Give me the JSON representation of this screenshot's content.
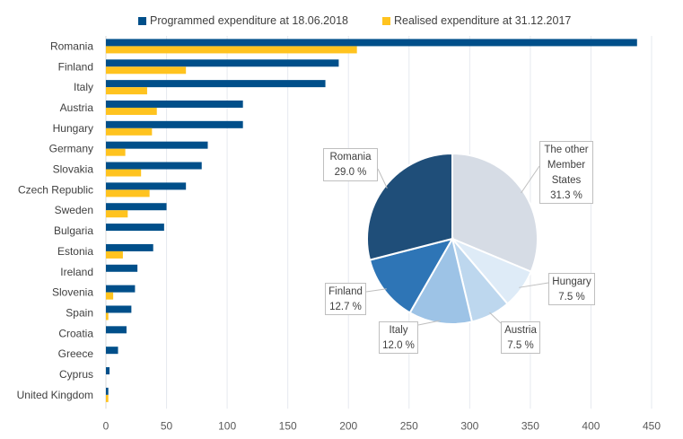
{
  "chart_data": [
    {
      "type": "bar",
      "orientation": "horizontal",
      "title": "",
      "xlabel": "",
      "ylabel": "",
      "xlim": [
        0,
        450
      ],
      "xticks": [
        0,
        50,
        100,
        150,
        200,
        250,
        300,
        350,
        400,
        450
      ],
      "grid": "vertical",
      "legend_position": "top",
      "categories": [
        "Romania",
        "Finland",
        "Italy",
        "Austria",
        "Hungary",
        "Germany",
        "Slovakia",
        "Czech Republic",
        "Sweden",
        "Bulgaria",
        "Estonia",
        "Ireland",
        "Slovenia",
        "Spain",
        "Croatia",
        "Greece",
        "Cyprus",
        "United Kingdom"
      ],
      "series": [
        {
          "name": "Programmed expenditure at 18.06.2018",
          "color": "#004f8a",
          "values": [
            438,
            192,
            181,
            113,
            113,
            84,
            79,
            66,
            50,
            48,
            39,
            26,
            24,
            21,
            17,
            10,
            3,
            2
          ]
        },
        {
          "name": "Realised expenditure at 31.12.2017",
          "color": "#ffc31f",
          "values": [
            207,
            66,
            34,
            42,
            38,
            16,
            29,
            36,
            18,
            0,
            14,
            0,
            6,
            2,
            0,
            0,
            0,
            2
          ]
        }
      ]
    },
    {
      "type": "pie",
      "title": "",
      "start": "top",
      "direction": "clockwise",
      "slices": [
        {
          "label": "The other Member States",
          "label_lines": [
            "The other",
            "Member",
            "States",
            "31.3 %"
          ],
          "value": 31.3,
          "color": "#d6dce5"
        },
        {
          "label": "Hungary",
          "label_lines": [
            "Hungary",
            "7.5 %"
          ],
          "value": 7.5,
          "color": "#deebf7"
        },
        {
          "label": "Austria",
          "label_lines": [
            "Austria",
            "7.5 %"
          ],
          "value": 7.5,
          "color": "#bdd7ee"
        },
        {
          "label": "Italy",
          "label_lines": [
            "Italy",
            "12.0 %"
          ],
          "value": 12.0,
          "color": "#9dc3e6"
        },
        {
          "label": "Finland",
          "label_lines": [
            "Finland",
            "12.7 %"
          ],
          "value": 12.7,
          "color": "#2e75b6"
        },
        {
          "label": "Romania",
          "label_lines": [
            "Romania",
            "29.0 %"
          ],
          "value": 29.0,
          "color": "#1f4e79"
        }
      ]
    }
  ]
}
